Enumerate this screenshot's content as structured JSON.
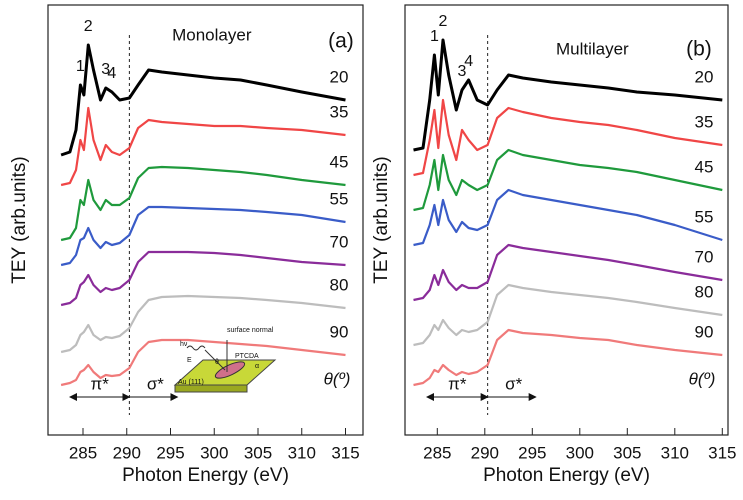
{
  "chart_data": [
    {
      "type": "line",
      "title": "Monolayer",
      "panel_label": "(a)",
      "x_label": "Photon Energy (eV)",
      "y_label": "TEY (arb.units)",
      "x": [
        282.5,
        283.5,
        284.2,
        284.7,
        285.1,
        285.6,
        286.2,
        287,
        287.6,
        288.3,
        289.2,
        290.3,
        291.3,
        292.5,
        294,
        297,
        300,
        303,
        306,
        310,
        315
      ],
      "series": [
        {
          "name": "20",
          "color": "#000000",
          "values": [
            280,
            283,
            305,
            350,
            340,
            390,
            365,
            335,
            347,
            343,
            335,
            337,
            350,
            365,
            363,
            360,
            357,
            355,
            350,
            343,
            335
          ]
        },
        {
          "name": "35",
          "color": "#f04646",
          "values": [
            250,
            252,
            265,
            295,
            285,
            327,
            295,
            275,
            290,
            283,
            280,
            287,
            307,
            315,
            313,
            311,
            309,
            309,
            307,
            305,
            300
          ]
        },
        {
          "name": "45",
          "color": "#1f9a3c",
          "values": [
            195,
            197,
            207,
            235,
            230,
            255,
            235,
            225,
            235,
            230,
            230,
            237,
            257,
            267,
            268,
            267,
            265,
            263,
            260,
            255,
            250
          ]
        },
        {
          "name": "55",
          "color": "#3a5cc8",
          "values": [
            170,
            172,
            180,
            195,
            197,
            207,
            195,
            187,
            193,
            190,
            192,
            200,
            220,
            228,
            228,
            227,
            226,
            225,
            223,
            220,
            213
          ]
        },
        {
          "name": "70",
          "color": "#8a2c9a",
          "values": [
            130,
            132,
            137,
            150,
            153,
            160,
            150,
            143,
            147,
            145,
            147,
            155,
            173,
            183,
            183,
            183,
            182,
            180,
            177,
            173,
            170
          ]
        },
        {
          "name": "80",
          "color": "#bdbdbd",
          "values": [
            83,
            85,
            90,
            100,
            103,
            110,
            100,
            95,
            98,
            97,
            99,
            107,
            123,
            135,
            138,
            139,
            138,
            137,
            135,
            132,
            127
          ]
        },
        {
          "name": "90",
          "color": "#f07a7a",
          "values": [
            50,
            52,
            55,
            63,
            65,
            70,
            63,
            57,
            60,
            59,
            60,
            67,
            83,
            93,
            95,
            95,
            93,
            91,
            89,
            85,
            80
          ]
        }
      ],
      "legend_title": "θ(º)",
      "annotations": [
        {
          "text": "1",
          "x": 284.7
        },
        {
          "text": "2",
          "x": 285.6
        },
        {
          "text": "3",
          "x": 287.6
        },
        {
          "text": "4",
          "x": 288.3
        }
      ],
      "divider_x": 290.3,
      "region_labels": [
        "π*",
        "σ*"
      ],
      "inset": {
        "labels": [
          "hν",
          "E",
          "surface normal",
          "PTCDA",
          "Au (111)",
          "θ",
          "α"
        ]
      },
      "xlim": [
        281,
        317
      ],
      "ylim": [
        0,
        430
      ],
      "xticks": [
        285,
        290,
        295,
        300,
        305,
        310,
        315
      ]
    },
    {
      "type": "line",
      "title": "Multilayer",
      "panel_label": "(b)",
      "x_label": "Photon Energy (eV)",
      "y_label": "TEY (arb.units)",
      "x": [
        282.5,
        283.5,
        284.2,
        284.7,
        285.1,
        285.6,
        286.2,
        287,
        287.6,
        288.3,
        289.2,
        290.3,
        291.3,
        292.5,
        294,
        297,
        300,
        303,
        306,
        310,
        315
      ],
      "series": [
        {
          "name": "20",
          "color": "#000000",
          "values": [
            285,
            287,
            335,
            380,
            340,
            395,
            360,
            325,
            345,
            355,
            335,
            330,
            345,
            360,
            357,
            353,
            350,
            347,
            343,
            340,
            335
          ]
        },
        {
          "name": "35",
          "color": "#f04646",
          "values": [
            260,
            262,
            295,
            325,
            287,
            335,
            300,
            275,
            305,
            295,
            285,
            290,
            317,
            327,
            323,
            317,
            313,
            310,
            305,
            297,
            290
          ]
        },
        {
          "name": "45",
          "color": "#1f9a3c",
          "values": [
            225,
            227,
            250,
            275,
            245,
            280,
            255,
            240,
            255,
            250,
            245,
            250,
            275,
            285,
            280,
            275,
            270,
            267,
            263,
            255,
            245
          ]
        },
        {
          "name": "55",
          "color": "#3a5cc8",
          "values": [
            190,
            192,
            210,
            230,
            210,
            235,
            215,
            203,
            213,
            207,
            205,
            210,
            235,
            245,
            240,
            235,
            230,
            225,
            220,
            210,
            195
          ]
        },
        {
          "name": "70",
          "color": "#8a2c9a",
          "values": [
            135,
            137,
            145,
            160,
            150,
            165,
            153,
            145,
            150,
            147,
            147,
            153,
            180,
            190,
            187,
            183,
            179,
            175,
            170,
            163,
            155
          ]
        },
        {
          "name": "80",
          "color": "#bdbdbd",
          "values": [
            90,
            92,
            100,
            110,
            105,
            115,
            107,
            100,
            105,
            103,
            105,
            113,
            140,
            150,
            147,
            143,
            140,
            137,
            133,
            127,
            120
          ]
        },
        {
          "name": "90",
          "color": "#f07a7a",
          "values": [
            50,
            52,
            57,
            65,
            63,
            70,
            65,
            60,
            63,
            61,
            63,
            70,
            95,
            105,
            102,
            100,
            97,
            95,
            90,
            85,
            80
          ]
        }
      ],
      "legend_title": "θ(º)",
      "annotations": [
        {
          "text": "1",
          "x": 284.7
        },
        {
          "text": "2",
          "x": 285.6
        },
        {
          "text": "3",
          "x": 287.6
        },
        {
          "text": "4",
          "x": 288.3
        }
      ],
      "divider_x": 290.3,
      "region_labels": [
        "π*",
        "σ*"
      ],
      "xlim": [
        281.6,
        315.6
      ],
      "ylim": [
        0,
        430
      ],
      "xticks": [
        285,
        290,
        295,
        300,
        305,
        310,
        315
      ]
    }
  ]
}
